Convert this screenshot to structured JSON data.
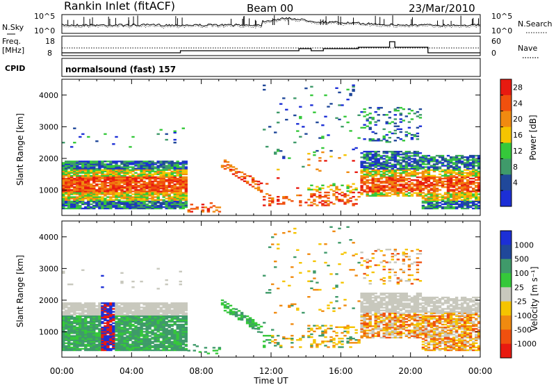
{
  "header": {
    "station": "Rankin Inlet (fitACF)",
    "beam": "Beam 00",
    "date": "23/Mar/2010"
  },
  "side_labels": {
    "nsky": "N.Sky",
    "freq_line1": "Freq.",
    "freq_line2": "[MHz]",
    "cpid": "CPID",
    "nsearch": "N.Search",
    "nave": "Nave"
  },
  "noise_panel": {
    "left_ticks": [
      "10^5",
      "10^0"
    ],
    "right_ticks": [
      "10^5",
      "10^0"
    ]
  },
  "freq_panel": {
    "left_ticks": [
      "18",
      "8"
    ],
    "right_ticks": [
      "60",
      "0"
    ]
  },
  "cpid_text": "normalsound (fast) 157",
  "colors": {
    "blue": "#1c2fd6",
    "green_dark": "#3f9a6a",
    "green": "#35c83a",
    "yellow": "#f5c400",
    "orange": "#f08a10",
    "red": "#e81a10",
    "grey": "#c8c8bd"
  },
  "chart_data": [
    {
      "type": "heatmap",
      "name": "power",
      "ylabel": "Slant Range [km]",
      "yticks": [
        "1000",
        "2000",
        "3000",
        "4000"
      ],
      "ylim": [
        200,
        4500
      ],
      "colorbar": {
        "label": "Power [dB]",
        "ticks": [
          "28",
          "24",
          "20",
          "16",
          "12",
          "8",
          "4"
        ],
        "range": [
          0,
          30
        ]
      }
    },
    {
      "type": "heatmap",
      "name": "velocity",
      "ylabel": "Slant Range [km]",
      "yticks": [
        "1000",
        "2000",
        "3000",
        "4000"
      ],
      "ylim": [
        200,
        4500
      ],
      "xlabel": "Time UT",
      "xticks": [
        "00:00",
        "04:00",
        "08:00",
        "12:00",
        "16:00",
        "20:00",
        "00:00"
      ],
      "xlim_hours": [
        0,
        24
      ],
      "colorbar": {
        "label": "Velocity [m s⁻¹]",
        "ticks": [
          "1000",
          "500",
          "100",
          "25",
          "-25",
          "-100",
          "-500",
          "-1000"
        ]
      }
    }
  ]
}
